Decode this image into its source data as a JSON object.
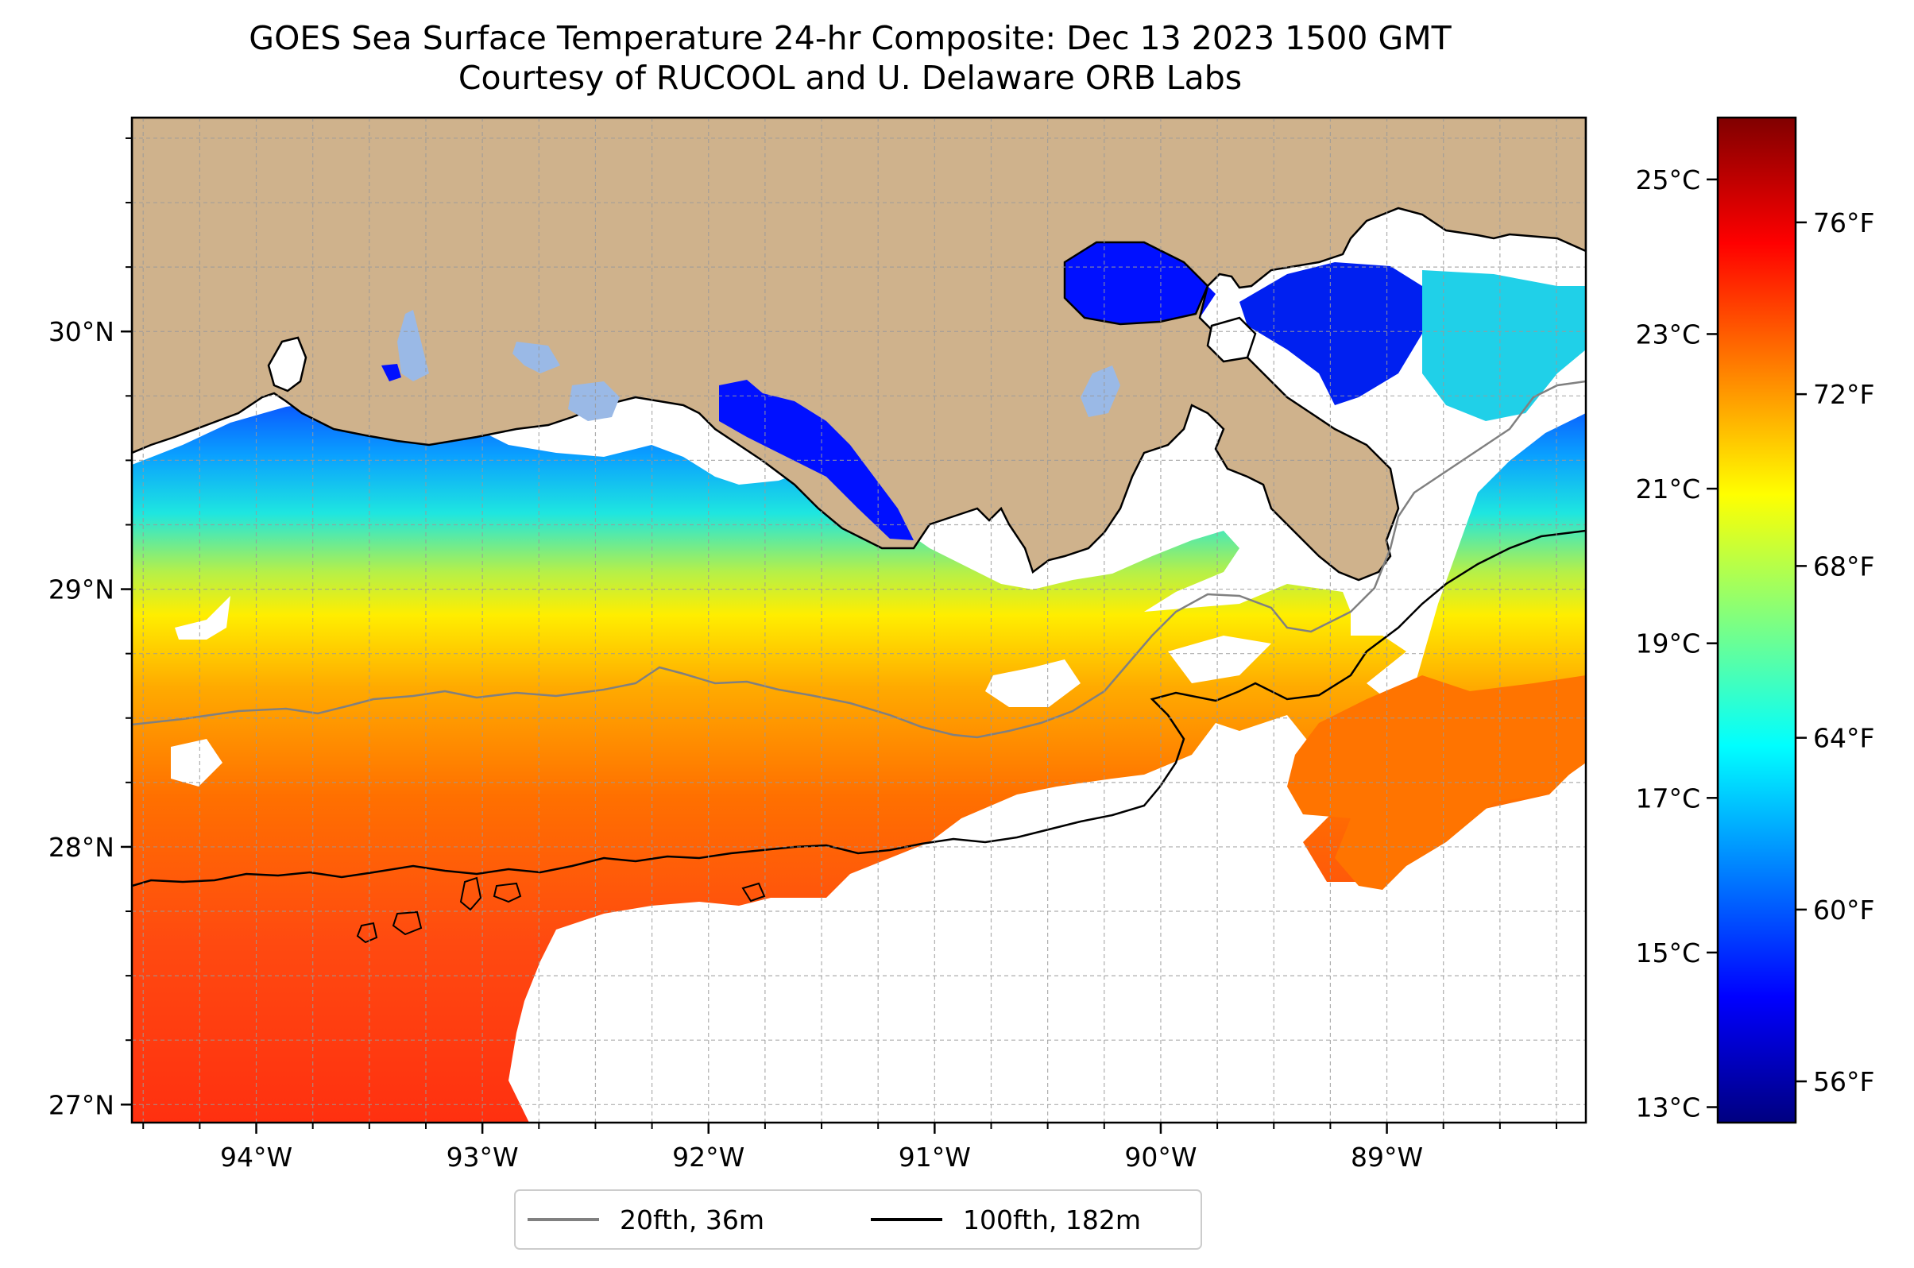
{
  "title": {
    "line1": "GOES Sea Surface Temperature 24-hr Composite: Dec 13 2023 1500 GMT",
    "line2": "Courtesy of RUCOOL and U. Delaware ORB Labs"
  },
  "map": {
    "lon_range": [
      -94.55,
      -88.12
    ],
    "lat_range": [
      26.93,
      30.83
    ],
    "lon_ticks": [
      "94°W",
      "93°W",
      "92°W",
      "91°W",
      "90°W",
      "89°W"
    ],
    "lon_tick_values": [
      -94,
      -93,
      -92,
      -91,
      -90,
      -89
    ],
    "lat_ticks": [
      "27°N",
      "28°N",
      "29°N",
      "30°N"
    ],
    "lat_tick_values": [
      27,
      28,
      29,
      30
    ],
    "minor_grid_step_deg": 0.25,
    "grid": "dashed gray",
    "land_color": "#cfb28c",
    "no_data_color": "#ffffff",
    "coastline_color": "#000000"
  },
  "legend": {
    "placement": "bottom-center",
    "entries": [
      {
        "label": "20fth, 36m",
        "color": "#808080"
      },
      {
        "label": "100fth, 182m",
        "color": "#000000"
      }
    ]
  },
  "colorbar": {
    "colormap": "jet",
    "celsius_range": [
      12.8,
      25.8
    ],
    "celsius_ticks": [
      "25°C",
      "23°C",
      "21°C",
      "19°C",
      "17°C",
      "15°C",
      "13°C"
    ],
    "celsius_values": [
      25,
      23,
      21,
      19,
      17,
      15,
      13
    ],
    "fahrenheit_ticks": [
      "76°F",
      "72°F",
      "68°F",
      "64°F",
      "60°F",
      "56°F"
    ],
    "fahrenheit_values": [
      76,
      72,
      68,
      64,
      60,
      56
    ]
  },
  "chart_data": {
    "type": "heatmap",
    "title": "GOES Sea Surface Temperature 24-hr Composite: Dec 13 2023 1500 GMT",
    "subtitle": "Courtesy of RUCOOL and U. Delaware ORB Labs",
    "units": "°C",
    "xlim": [
      -94.55,
      -88.12
    ],
    "ylim": [
      26.93,
      30.83
    ],
    "sst_by_latitude_degC": [
      {
        "lat": 29.7,
        "value": 17.0
      },
      {
        "lat": 29.4,
        "value": 17.8
      },
      {
        "lat": 29.1,
        "value": 19.0
      },
      {
        "lat": 28.8,
        "value": 20.5
      },
      {
        "lat": 28.5,
        "value": 21.8
      },
      {
        "lat": 28.2,
        "value": 22.8
      },
      {
        "lat": 27.9,
        "value": 23.4
      },
      {
        "lat": 27.5,
        "value": 24.0
      },
      {
        "lat": 27.1,
        "value": 24.3
      }
    ],
    "nearshore_minimum_degC": 13.8,
    "contours": [
      "20fth, 36m",
      "100fth, 182m"
    ]
  }
}
